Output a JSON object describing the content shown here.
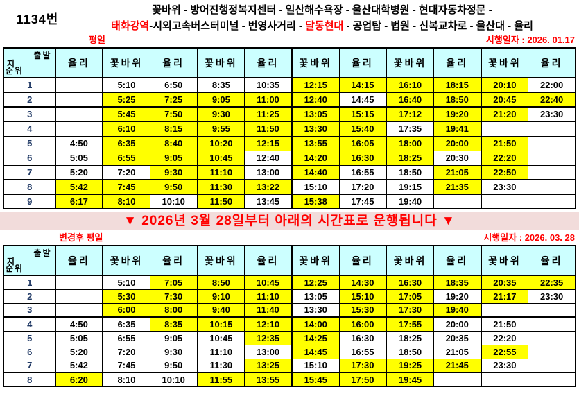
{
  "route": {
    "number": "1134번",
    "line1": "꽃바위 - 방어진행정복지센터 - 일산해수욕장 - 울산대학병원 - 현대자동차정문 -",
    "line2_red1": "태화강역",
    "line2_mid": "-시외고속버스터미널 - 번영사거리 - ",
    "line2_red2": "달동현대",
    "line2_end": " - 공업탑 - 법원 - 신복교차로 - 울산대 - 율리"
  },
  "banner": "▼ 2026년 3월 28일부터 아래의 시간표로 운행됩니다 ▼",
  "corner": {
    "top": "출발",
    "left": "지",
    "bottom": "순위"
  },
  "colors": {
    "header_bg": "#CCFFFF",
    "highlight": "#FFFF00",
    "banner_bg": "#F2DCDB",
    "accent_red": "#FF0000",
    "seq_number": "#1F3864"
  },
  "tables": [
    {
      "label": "평일",
      "effective_date": "시행일자 : 2026. 01.17",
      "columns": [
        "율리",
        "꽃바위",
        "율리",
        "꽃바위",
        "율리",
        "꽃바위",
        "율리",
        "꽃바위",
        "율리",
        "꽃바위",
        "율리"
      ],
      "thick_after": [
        2,
        7
      ],
      "rows": [
        {
          "seq": "1",
          "times": [
            "",
            "5:10",
            "6:50",
            "8:35",
            "10:35",
            "12:15",
            "14:15",
            "16:10",
            "18:15",
            "20:10",
            "22:00"
          ],
          "hl": [
            0,
            0,
            0,
            0,
            0,
            1,
            1,
            1,
            1,
            1,
            0
          ]
        },
        {
          "seq": "2",
          "times": [
            "",
            "5:25",
            "7:25",
            "9:05",
            "11:00",
            "12:40",
            "14:45",
            "16:40",
            "18:50",
            "20:45",
            "22:40"
          ],
          "hl": [
            0,
            1,
            1,
            1,
            1,
            1,
            0,
            1,
            1,
            1,
            1
          ]
        },
        {
          "seq": "3",
          "times": [
            "",
            "5:45",
            "7:50",
            "9:30",
            "11:25",
            "13:05",
            "15:15",
            "17:12",
            "19:20",
            "21:20",
            "23:30"
          ],
          "hl": [
            0,
            1,
            1,
            1,
            1,
            1,
            1,
            1,
            1,
            1,
            0
          ]
        },
        {
          "seq": "4",
          "times": [
            "",
            "6:10",
            "8:15",
            "9:55",
            "11:50",
            "13:30",
            "15:40",
            "17:35",
            "19:41",
            "",
            ""
          ],
          "hl": [
            0,
            1,
            1,
            1,
            1,
            1,
            1,
            0,
            1,
            0,
            0
          ]
        },
        {
          "seq": "5",
          "times": [
            "4:50",
            "6:35",
            "8:40",
            "10:20",
            "12:15",
            "13:55",
            "16:05",
            "18:00",
            "20:00",
            "21:50",
            ""
          ],
          "hl": [
            0,
            1,
            1,
            1,
            1,
            1,
            1,
            1,
            1,
            1,
            0
          ]
        },
        {
          "seq": "6",
          "times": [
            "5:05",
            "6:55",
            "9:05",
            "10:45",
            "12:40",
            "14:20",
            "16:30",
            "18:25",
            "20:30",
            "22:20",
            ""
          ],
          "hl": [
            0,
            1,
            1,
            1,
            0,
            1,
            1,
            1,
            0,
            1,
            0
          ]
        },
        {
          "seq": "7",
          "times": [
            "5:20",
            "7:20",
            "9:30",
            "11:10",
            "13:00",
            "14:40",
            "16:55",
            "18:50",
            "21:05",
            "22:50",
            ""
          ],
          "hl": [
            0,
            0,
            1,
            1,
            0,
            1,
            0,
            0,
            1,
            1,
            0
          ]
        },
        {
          "seq": "8",
          "times": [
            "5:42",
            "7:45",
            "9:50",
            "11:30",
            "13:22",
            "15:10",
            "17:20",
            "19:15",
            "21:35",
            "23:30",
            ""
          ],
          "hl": [
            1,
            1,
            1,
            1,
            1,
            0,
            0,
            0,
            1,
            0,
            0
          ]
        },
        {
          "seq": "9",
          "times": [
            "6:17",
            "8:10",
            "10:10",
            "11:50",
            "13:45",
            "15:38",
            "17:45",
            "19:40",
            "",
            "",
            ""
          ],
          "hl": [
            1,
            1,
            0,
            1,
            0,
            1,
            0,
            0,
            0,
            0,
            0
          ]
        }
      ]
    },
    {
      "label": "변경후 평일",
      "effective_date": "시행일자 : 2026. 03. 28",
      "columns": [
        "율리",
        "꽃바위",
        "율리",
        "꽃바위",
        "율리",
        "꽃바위",
        "율리",
        "꽃바위",
        "율리",
        "꽃바위",
        "율리"
      ],
      "thick_after": [
        3,
        7
      ],
      "rows": [
        {
          "seq": "1",
          "times": [
            "",
            "5:10",
            "7:05",
            "8:50",
            "10:45",
            "12:25",
            "14:30",
            "16:30",
            "18:35",
            "20:35",
            "22:35"
          ],
          "hl": [
            0,
            0,
            1,
            1,
            1,
            1,
            1,
            1,
            1,
            1,
            1
          ]
        },
        {
          "seq": "2",
          "times": [
            "",
            "5:30",
            "7:30",
            "9:10",
            "11:10",
            "13:05",
            "15:10",
            "17:05",
            "19:20",
            "21:17",
            "23:30"
          ],
          "hl": [
            0,
            1,
            1,
            1,
            1,
            0,
            1,
            1,
            0,
            1,
            0
          ]
        },
        {
          "seq": "3",
          "times": [
            "",
            "6:00",
            "8:00",
            "9:40",
            "11:40",
            "13:30",
            "15:30",
            "17:30",
            "19:40",
            "",
            ""
          ],
          "hl": [
            0,
            1,
            1,
            1,
            1,
            0,
            1,
            1,
            1,
            0,
            0
          ]
        },
        {
          "seq": "4",
          "times": [
            "4:50",
            "6:35",
            "8:35",
            "10:15",
            "12:10",
            "14:00",
            "16:00",
            "17:55",
            "20:00",
            "21:50",
            ""
          ],
          "hl": [
            0,
            0,
            1,
            1,
            1,
            1,
            1,
            1,
            0,
            0,
            0
          ]
        },
        {
          "seq": "5",
          "times": [
            "5:05",
            "6:55",
            "9:05",
            "10:45",
            "12:35",
            "14:25",
            "16:30",
            "18:25",
            "20:35",
            "22:20",
            ""
          ],
          "hl": [
            0,
            0,
            0,
            0,
            1,
            1,
            0,
            0,
            0,
            0,
            0
          ]
        },
        {
          "seq": "6",
          "times": [
            "5:20",
            "7:20",
            "9:30",
            "11:10",
            "13:00",
            "14:45",
            "16:55",
            "18:50",
            "21:05",
            "22:55",
            ""
          ],
          "hl": [
            0,
            0,
            0,
            0,
            0,
            1,
            0,
            0,
            0,
            1,
            0
          ]
        },
        {
          "seq": "7",
          "times": [
            "5:42",
            "7:45",
            "9:50",
            "11:30",
            "13:25",
            "15:10",
            "17:30",
            "19:25",
            "21:45",
            "23:30",
            ""
          ],
          "hl": [
            0,
            0,
            0,
            0,
            1,
            0,
            1,
            1,
            1,
            0,
            0
          ]
        },
        {
          "seq": "8",
          "times": [
            "6:20",
            "8:10",
            "10:10",
            "11:55",
            "13:55",
            "15:45",
            "17:50",
            "19:45",
            "",
            "",
            ""
          ],
          "hl": [
            1,
            0,
            0,
            1,
            1,
            1,
            1,
            1,
            0,
            0,
            0
          ]
        }
      ]
    }
  ]
}
